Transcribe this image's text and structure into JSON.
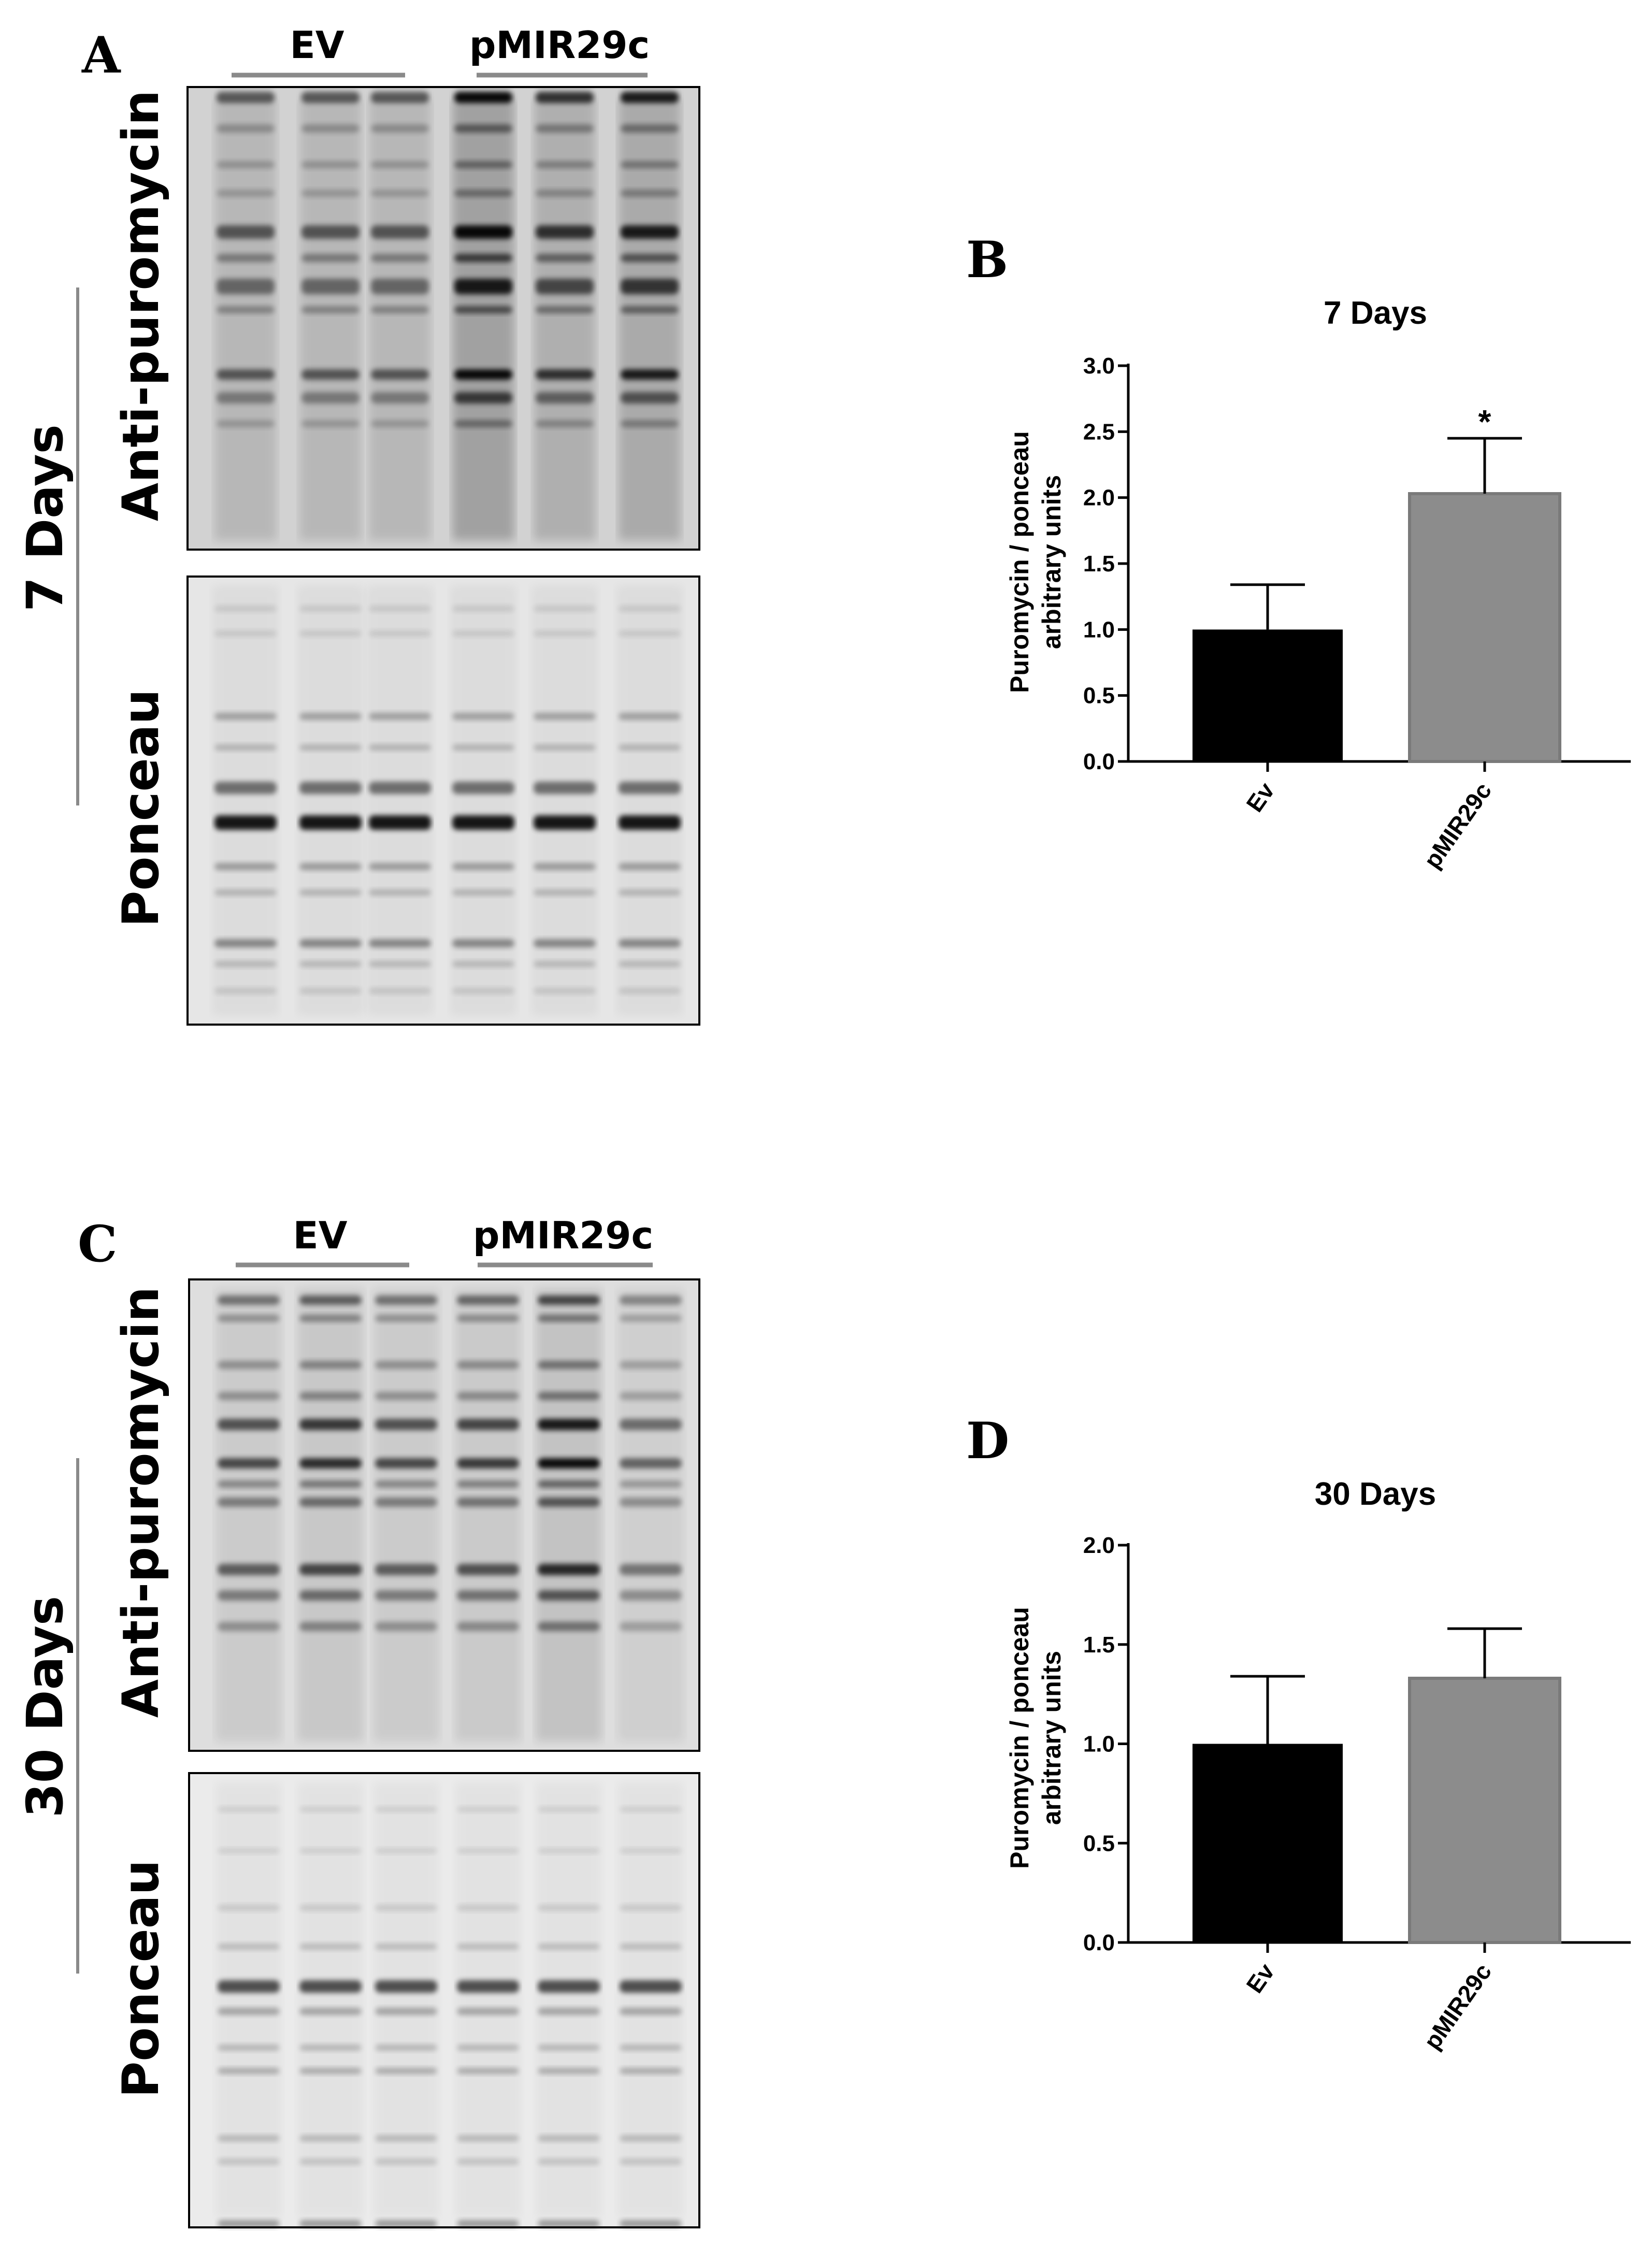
{
  "panels": {
    "A": "A",
    "B": "B",
    "C": "C",
    "D": "D"
  },
  "blots": [
    {
      "group_labels": [
        "EV",
        "pMIR29c"
      ],
      "timepoint": "7 Days",
      "top_label": "Anti-puromycin",
      "bottom_label": "Ponceau"
    },
    {
      "group_labels": [
        "EV",
        "pMIR29c"
      ],
      "timepoint": "30 Days",
      "top_label": "Anti-puromycin",
      "bottom_label": "Ponceau"
    }
  ],
  "chart_data": [
    {
      "type": "bar",
      "title": "7 Days",
      "ylabel_lines": [
        "Puromycin / ponceau",
        "arbitrary units"
      ],
      "categories": [
        "Ev",
        "pMIR29c"
      ],
      "values": [
        1.0,
        2.03
      ],
      "errors": [
        0.34,
        0.42
      ],
      "significance": [
        "",
        "*"
      ],
      "colors": [
        "#000000",
        "#8c8c8c"
      ],
      "ylim": [
        0,
        3.0
      ],
      "yticks": [
        "0.0",
        "0.5",
        "1.0",
        "1.5",
        "2.0",
        "2.5",
        "3.0"
      ],
      "grid": false
    },
    {
      "type": "bar",
      "title": "30 Days",
      "ylabel_lines": [
        "Puromycin / ponceau",
        "arbitrary units"
      ],
      "categories": [
        "Ev",
        "pMIR29c"
      ],
      "values": [
        1.0,
        1.33
      ],
      "errors": [
        0.34,
        0.25
      ],
      "significance": [
        "",
        ""
      ],
      "colors": [
        "#000000",
        "#8c8c8c"
      ],
      "ylim": [
        0,
        2.0
      ],
      "yticks": [
        "0.0",
        "0.5",
        "1.0",
        "1.5",
        "2.0"
      ],
      "grid": false
    }
  ]
}
